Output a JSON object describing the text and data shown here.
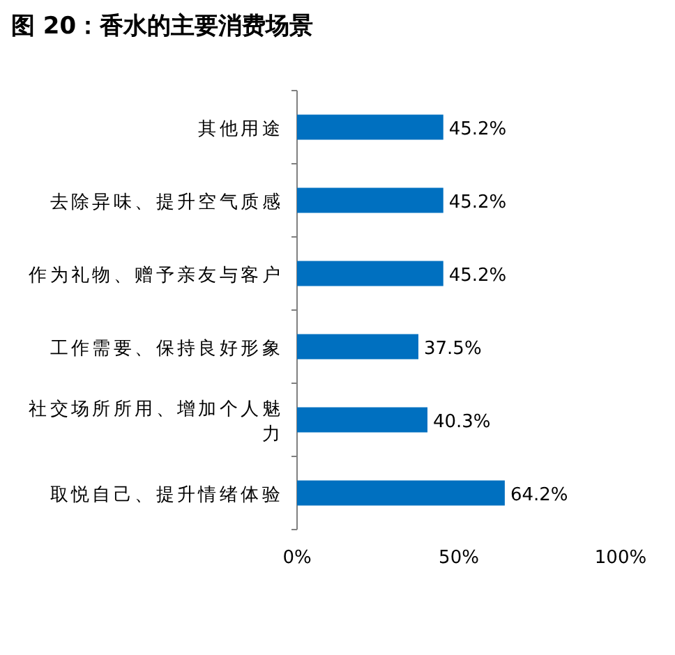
{
  "chart_data": {
    "type": "bar",
    "orientation": "horizontal",
    "title": "图 20：香水的主要消费场景",
    "categories": [
      "其他用途",
      "去除异味、提升空气质感",
      "作为礼物、赠予亲友与客户",
      "工作需要、保持良好形象",
      "社交场所所用、增加个人魅力",
      "取悦自己、提升情绪体验"
    ],
    "values": [
      45.2,
      45.2,
      45.2,
      37.5,
      40.3,
      64.2
    ],
    "value_labels": [
      "45.2%",
      "45.2%",
      "45.2%",
      "37.5%",
      "40.3%",
      "64.2%"
    ],
    "color": "#0070c0",
    "xlim": [
      0,
      100
    ],
    "xticks": [
      {
        "value": 0,
        "label": "0%"
      },
      {
        "value": 50,
        "label": "50%"
      },
      {
        "value": 100,
        "label": "100%"
      }
    ]
  }
}
